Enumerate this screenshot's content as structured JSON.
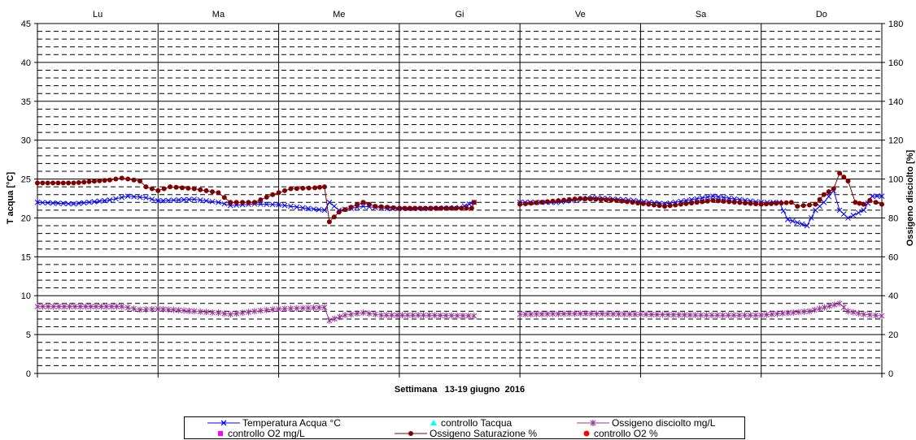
{
  "chart_data": {
    "type": "line",
    "xlabel": "Settimana   13-19 giugno  2016",
    "ylabel": "T acqua [°C]",
    "y2label": "Ossigeno disciolto [%]",
    "days": [
      "Lu",
      "Ma",
      "Me",
      "Gi",
      "Ve",
      "Sa",
      "Do"
    ],
    "ylim": [
      0,
      45
    ],
    "yticks": [
      0,
      5,
      10,
      15,
      20,
      25,
      30,
      35,
      40,
      45
    ],
    "y2lim": [
      0,
      180
    ],
    "y2ticks": [
      0,
      20,
      40,
      60,
      80,
      100,
      120,
      140,
      160,
      180
    ],
    "x_unit": "day index (0 = start of Lu)",
    "grid": true,
    "legend_position": "bottom",
    "series": [
      {
        "name": "Temperatura Acqua °C",
        "axis": "left",
        "color": "#0000ff",
        "marker": "x",
        "points": [
          [
            0,
            22.0
          ],
          [
            0.3,
            21.8
          ],
          [
            0.6,
            22.3
          ],
          [
            0.75,
            22.8
          ],
          [
            0.9,
            22.6
          ],
          [
            1.0,
            22.2
          ],
          [
            1.3,
            22.4
          ],
          [
            1.5,
            22.0
          ],
          [
            1.6,
            21.6
          ],
          [
            1.8,
            21.8
          ],
          [
            2.0,
            21.7
          ],
          [
            2.2,
            21.3
          ],
          [
            2.38,
            21.0
          ],
          [
            2.42,
            22.0
          ],
          [
            2.5,
            21.0
          ],
          [
            2.7,
            21.5
          ],
          [
            2.9,
            21.2
          ],
          [
            3.2,
            21.2
          ],
          [
            3.5,
            21.3
          ],
          [
            3.62,
            22.0
          ],
          [
            4.0,
            22.0
          ],
          [
            4.3,
            22.0
          ],
          [
            4.6,
            22.6
          ],
          [
            4.9,
            22.3
          ],
          [
            5.2,
            21.8
          ],
          [
            5.6,
            22.8
          ],
          [
            6.0,
            22.0
          ],
          [
            6.15,
            22.0
          ],
          [
            6.22,
            19.8
          ],
          [
            6.38,
            19.0
          ],
          [
            6.45,
            21.0
          ],
          [
            6.52,
            22.0
          ],
          [
            6.6,
            23.5
          ],
          [
            6.65,
            21.0
          ],
          [
            6.72,
            20.0
          ],
          [
            6.85,
            21.0
          ],
          [
            6.92,
            22.8
          ],
          [
            7.0,
            22.8
          ]
        ]
      },
      {
        "name": "controllo Tacqua",
        "axis": "left",
        "color": "#00ffff",
        "marker": "triangle",
        "points": []
      },
      {
        "name": "Ossigeno disciolto mg/L",
        "axis": "left",
        "color": "#993399",
        "marker": "star",
        "points": [
          [
            0,
            8.6
          ],
          [
            0.4,
            8.6
          ],
          [
            0.7,
            8.6
          ],
          [
            0.85,
            8.2
          ],
          [
            1.0,
            8.3
          ],
          [
            1.3,
            8.0
          ],
          [
            1.5,
            7.8
          ],
          [
            1.6,
            7.6
          ],
          [
            1.8,
            8.0
          ],
          [
            2.0,
            8.3
          ],
          [
            2.2,
            8.4
          ],
          [
            2.38,
            8.5
          ],
          [
            2.42,
            6.8
          ],
          [
            2.55,
            7.5
          ],
          [
            2.7,
            7.8
          ],
          [
            2.85,
            7.5
          ],
          [
            3.2,
            7.5
          ],
          [
            3.62,
            7.4
          ],
          [
            4.0,
            7.6
          ],
          [
            4.5,
            7.7
          ],
          [
            5.0,
            7.6
          ],
          [
            5.5,
            7.5
          ],
          [
            6.0,
            7.5
          ],
          [
            6.4,
            8.0
          ],
          [
            6.65,
            9.0
          ],
          [
            6.72,
            8.0
          ],
          [
            6.85,
            7.6
          ],
          [
            7.0,
            7.4
          ]
        ]
      },
      {
        "name": "controllo O2 mg/L",
        "axis": "left",
        "color": "#ff00ff",
        "marker": "square",
        "points": []
      },
      {
        "name": "Ossigeno Saturazione %",
        "axis": "right",
        "color": "#800000",
        "marker": "dot",
        "points": [
          [
            0,
            98
          ],
          [
            0.3,
            98
          ],
          [
            0.6,
            99.5
          ],
          [
            0.7,
            100.5
          ],
          [
            0.85,
            99
          ],
          [
            0.9,
            96
          ],
          [
            1.0,
            94
          ],
          [
            1.1,
            96
          ],
          [
            1.3,
            95
          ],
          [
            1.5,
            93
          ],
          [
            1.6,
            88
          ],
          [
            1.8,
            88
          ],
          [
            1.95,
            92
          ],
          [
            2.1,
            95
          ],
          [
            2.3,
            95.5
          ],
          [
            2.38,
            96
          ],
          [
            2.42,
            78
          ],
          [
            2.5,
            83
          ],
          [
            2.7,
            88
          ],
          [
            2.8,
            86
          ],
          [
            3.0,
            85
          ],
          [
            3.3,
            85
          ],
          [
            3.6,
            85
          ],
          [
            3.62,
            88
          ],
          [
            4.0,
            87
          ],
          [
            4.5,
            90
          ],
          [
            4.8,
            89
          ],
          [
            5.2,
            86
          ],
          [
            5.6,
            89
          ],
          [
            6.0,
            87
          ],
          [
            6.25,
            88
          ],
          [
            6.3,
            86
          ],
          [
            6.45,
            87
          ],
          [
            6.52,
            92
          ],
          [
            6.6,
            95
          ],
          [
            6.65,
            103
          ],
          [
            6.72,
            99
          ],
          [
            6.78,
            88
          ],
          [
            6.85,
            87
          ],
          [
            6.9,
            89
          ],
          [
            7.0,
            87
          ]
        ]
      },
      {
        "name": "controllo O2 %",
        "axis": "right",
        "color": "#ff0000",
        "marker": "bigdot",
        "points": []
      }
    ]
  }
}
